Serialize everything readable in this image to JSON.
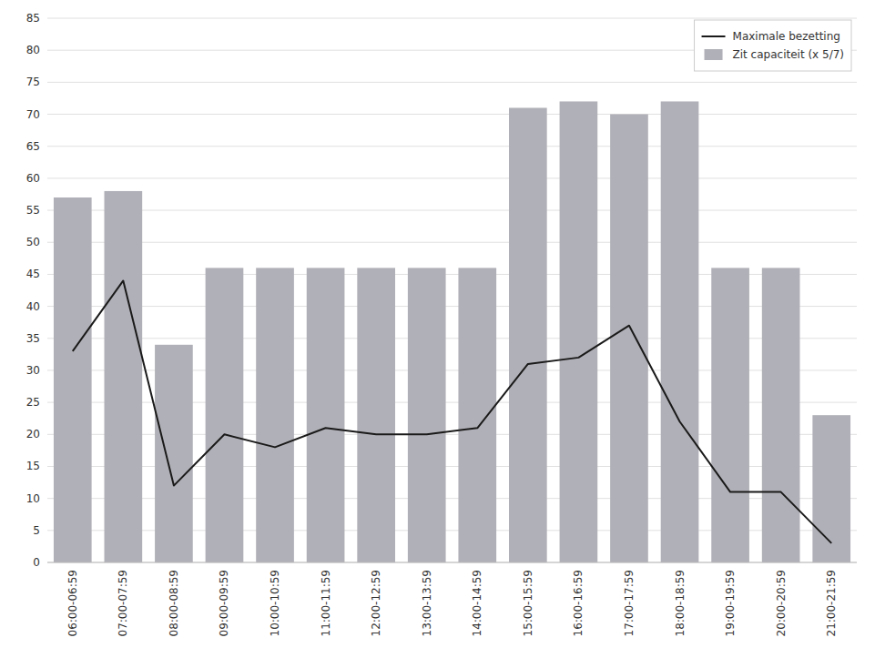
{
  "chart_data": {
    "type": "bar",
    "categories": [
      "06:00-06:59",
      "07:00-07:59",
      "08:00-08:59",
      "09:00-09:59",
      "10:00-10:59",
      "11:00-11:59",
      "12:00-12:59",
      "13:00-13:59",
      "14:00-14:59",
      "15:00-15:59",
      "16:00-16:59",
      "17:00-17:59",
      "18:00-18:59",
      "19:00-19:59",
      "20:00-20:59",
      "21:00-21:59"
    ],
    "series": [
      {
        "name": "Maximale bezetting",
        "type": "line",
        "color": "#1a1a1a",
        "values": [
          33,
          44,
          12,
          20,
          18,
          21,
          20,
          20,
          21,
          31,
          32,
          37,
          22,
          11,
          11,
          3
        ]
      },
      {
        "name": "Zit capaciteit (x 5/7)",
        "type": "bar",
        "color": "#b0b0b8",
        "values": [
          57,
          58,
          34,
          46,
          46,
          46,
          46,
          46,
          46,
          71,
          72,
          70,
          72,
          46,
          46,
          23
        ]
      }
    ],
    "ylim": [
      0,
      85
    ],
    "yticks": [
      0,
      5,
      10,
      15,
      20,
      25,
      30,
      35,
      40,
      45,
      50,
      55,
      60,
      65,
      70,
      75,
      80,
      85
    ],
    "grid": true,
    "legend": "upper right"
  }
}
